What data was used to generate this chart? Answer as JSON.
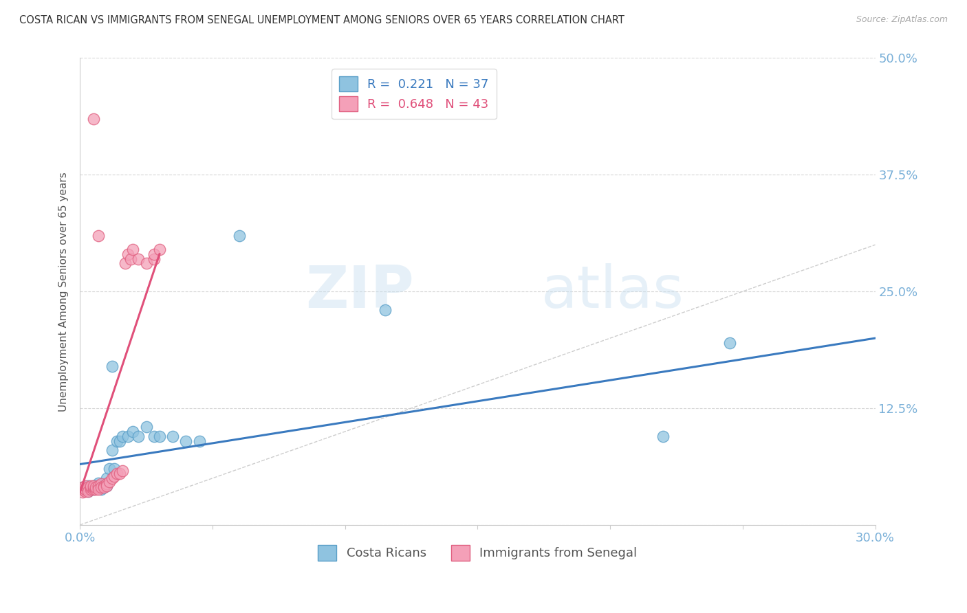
{
  "title": "COSTA RICAN VS IMMIGRANTS FROM SENEGAL UNEMPLOYMENT AMONG SENIORS OVER 65 YEARS CORRELATION CHART",
  "source": "Source: ZipAtlas.com",
  "ylabel": "Unemployment Among Seniors over 65 years",
  "xlim": [
    0.0,
    0.3
  ],
  "ylim": [
    0.0,
    0.5
  ],
  "xticks": [
    0.0,
    0.05,
    0.1,
    0.15,
    0.2,
    0.25,
    0.3
  ],
  "xticklabels": [
    "0.0%",
    "",
    "",
    "",
    "",
    "",
    "30.0%"
  ],
  "yticks": [
    0.0,
    0.125,
    0.25,
    0.375,
    0.5
  ],
  "yticklabels": [
    "",
    "12.5%",
    "25.0%",
    "37.5%",
    "50.0%"
  ],
  "watermark_zip": "ZIP",
  "watermark_atlas": "atlas",
  "legend_r1": "R =  0.221",
  "legend_n1": "N = 37",
  "legend_r2": "R =  0.648",
  "legend_n2": "N = 43",
  "color_blue": "#8fc3e0",
  "color_pink": "#f4a0b8",
  "color_edge_blue": "#5a9fc8",
  "color_edge_pink": "#e06080",
  "color_line_blue": "#3a7abf",
  "color_line_pink": "#e0507a",
  "color_diag": "#c8c8c8",
  "color_axis_text": "#7ab0d8",
  "blue_points_x": [
    0.001,
    0.002,
    0.003,
    0.003,
    0.004,
    0.005,
    0.005,
    0.006,
    0.006,
    0.007,
    0.007,
    0.008,
    0.008,
    0.009,
    0.009,
    0.01,
    0.01,
    0.011,
    0.012,
    0.013,
    0.014,
    0.015,
    0.016,
    0.018,
    0.02,
    0.022,
    0.025,
    0.028,
    0.03,
    0.035,
    0.04,
    0.045,
    0.06,
    0.115,
    0.22,
    0.245,
    0.012
  ],
  "blue_points_y": [
    0.04,
    0.038,
    0.042,
    0.036,
    0.04,
    0.042,
    0.038,
    0.04,
    0.042,
    0.045,
    0.04,
    0.042,
    0.038,
    0.044,
    0.04,
    0.05,
    0.042,
    0.06,
    0.08,
    0.06,
    0.09,
    0.09,
    0.095,
    0.095,
    0.1,
    0.095,
    0.105,
    0.095,
    0.095,
    0.095,
    0.09,
    0.09,
    0.31,
    0.23,
    0.095,
    0.195,
    0.17
  ],
  "pink_points_x": [
    0.001,
    0.001,
    0.001,
    0.002,
    0.002,
    0.002,
    0.003,
    0.003,
    0.003,
    0.004,
    0.004,
    0.004,
    0.005,
    0.005,
    0.005,
    0.006,
    0.006,
    0.007,
    0.007,
    0.007,
    0.008,
    0.008,
    0.009,
    0.009,
    0.01,
    0.01,
    0.011,
    0.012,
    0.013,
    0.014,
    0.015,
    0.016,
    0.017,
    0.018,
    0.019,
    0.02,
    0.022,
    0.025,
    0.028,
    0.028,
    0.03,
    0.005,
    0.007
  ],
  "pink_points_y": [
    0.035,
    0.038,
    0.04,
    0.036,
    0.038,
    0.042,
    0.038,
    0.04,
    0.036,
    0.038,
    0.04,
    0.042,
    0.038,
    0.04,
    0.042,
    0.038,
    0.04,
    0.04,
    0.042,
    0.038,
    0.044,
    0.04,
    0.042,
    0.04,
    0.044,
    0.042,
    0.046,
    0.05,
    0.052,
    0.055,
    0.055,
    0.058,
    0.28,
    0.29,
    0.285,
    0.295,
    0.285,
    0.28,
    0.285,
    0.29,
    0.295,
    0.435,
    0.31
  ]
}
